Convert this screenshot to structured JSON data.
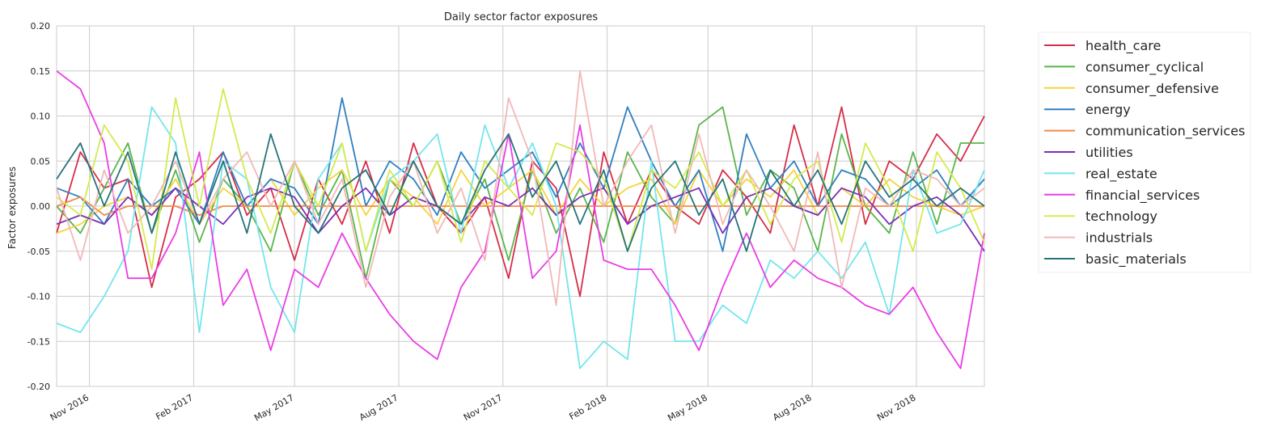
{
  "chart_data": {
    "type": "line",
    "title": "Daily sector factor exposures",
    "xlabel": "",
    "ylabel": "Factor exposures",
    "xlim": [
      "2016-10-03",
      "2018-12-31"
    ],
    "ylim": [
      -0.2,
      0.2
    ],
    "y_ticks": [
      "0.20",
      "0.15",
      "0.10",
      "0.05",
      "0.00",
      "-0.05",
      "-0.10",
      "-0.15",
      "-0.20"
    ],
    "x_ticks": [
      {
        "label": "Nov 2016",
        "date": "2016-11-01"
      },
      {
        "label": "Feb 2017",
        "date": "2017-02-01"
      },
      {
        "label": "May 2017",
        "date": "2017-05-01"
      },
      {
        "label": "Aug 2017",
        "date": "2017-08-01"
      },
      {
        "label": "Nov 2017",
        "date": "2017-11-01"
      },
      {
        "label": "Feb 2018",
        "date": "2018-02-01"
      },
      {
        "label": "May 2018",
        "date": "2018-05-01"
      },
      {
        "label": "Aug 2018",
        "date": "2018-08-01"
      },
      {
        "label": "Nov 2018",
        "date": "2018-11-01"
      }
    ],
    "grid": true,
    "legend_position": "outside-right-top",
    "x": [
      "2016-10-03",
      "2016-10-24",
      "2016-11-14",
      "2016-12-05",
      "2016-12-26",
      "2017-01-16",
      "2017-02-06",
      "2017-02-27",
      "2017-03-20",
      "2017-04-10",
      "2017-05-01",
      "2017-05-22",
      "2017-06-12",
      "2017-07-03",
      "2017-07-24",
      "2017-08-14",
      "2017-09-04",
      "2017-09-25",
      "2017-10-16",
      "2017-11-06",
      "2017-11-27",
      "2017-12-18",
      "2018-01-08",
      "2018-01-29",
      "2018-02-19",
      "2018-03-12",
      "2018-04-02",
      "2018-04-23",
      "2018-05-14",
      "2018-06-04",
      "2018-06-25",
      "2018-07-16",
      "2018-08-06",
      "2018-08-27",
      "2018-09-17",
      "2018-10-08",
      "2018-10-29",
      "2018-11-19",
      "2018-12-10",
      "2018-12-31"
    ],
    "series": [
      {
        "name": "health_care",
        "color": "#d62d49",
        "values": [
          -0.03,
          0.06,
          0.02,
          0.03,
          -0.09,
          0.01,
          0.03,
          0.06,
          -0.01,
          0.02,
          -0.06,
          0.03,
          -0.02,
          0.05,
          -0.03,
          0.07,
          0.0,
          -0.03,
          0.01,
          -0.08,
          0.05,
          0.02,
          -0.1,
          0.06,
          -0.02,
          0.04,
          0.0,
          -0.02,
          0.04,
          0.01,
          -0.03,
          0.09,
          0.0,
          0.11,
          -0.02,
          0.05,
          0.03,
          0.08,
          0.05,
          0.1
        ]
      },
      {
        "name": "consumer_cyclical",
        "color": "#5ab54b",
        "values": [
          0.0,
          -0.03,
          0.02,
          0.07,
          -0.03,
          0.04,
          -0.04,
          0.03,
          0.0,
          -0.05,
          0.05,
          -0.01,
          0.04,
          -0.08,
          0.03,
          0.0,
          0.05,
          -0.02,
          0.03,
          -0.06,
          0.04,
          -0.03,
          0.02,
          -0.04,
          0.06,
          0.01,
          -0.02,
          0.09,
          0.11,
          -0.01,
          0.04,
          0.02,
          -0.05,
          0.08,
          0.0,
          -0.03,
          0.06,
          -0.02,
          0.07,
          0.07
        ]
      },
      {
        "name": "consumer_defensive",
        "color": "#f6d33c",
        "values": [
          -0.03,
          -0.02,
          0.0,
          0.01,
          -0.01,
          0.03,
          -0.02,
          0.02,
          0.0,
          0.03,
          -0.01,
          0.02,
          0.04,
          -0.01,
          0.03,
          0.01,
          -0.02,
          0.04,
          0.0,
          0.02,
          0.04,
          -0.01,
          0.03,
          0.0,
          0.02,
          0.03,
          -0.02,
          0.04,
          0.0,
          0.03,
          0.01,
          0.04,
          -0.01,
          0.02,
          0.0,
          0.03,
          0.01,
          0.0,
          -0.01,
          0.0
        ]
      },
      {
        "name": "energy",
        "color": "#2f7fc1",
        "values": [
          0.02,
          0.01,
          -0.02,
          0.03,
          0.0,
          0.02,
          -0.02,
          0.06,
          0.0,
          0.03,
          0.02,
          -0.02,
          0.12,
          0.0,
          0.05,
          0.03,
          -0.01,
          0.06,
          0.02,
          0.04,
          0.06,
          0.01,
          0.07,
          0.02,
          0.11,
          0.05,
          0.0,
          0.04,
          -0.05,
          0.08,
          0.02,
          0.05,
          0.0,
          0.04,
          0.03,
          0.0,
          0.02,
          0.04,
          0.0,
          0.03
        ]
      },
      {
        "name": "communication_services",
        "color": "#f28a4b",
        "values": [
          0.0,
          0.01,
          -0.01,
          0.0,
          0.0,
          0.0,
          -0.01,
          0.0,
          0.0,
          0.0,
          0.0,
          0.0,
          0.0,
          0.0,
          0.0,
          0.0,
          0.0,
          0.0,
          0.0,
          0.0,
          0.0,
          0.0,
          0.0,
          0.0,
          0.0,
          0.0,
          0.0,
          0.0,
          0.0,
          0.0,
          0.0,
          0.0,
          0.0,
          0.0,
          0.0,
          0.0,
          0.0,
          0.0,
          0.0,
          0.0
        ]
      },
      {
        "name": "utilities",
        "color": "#7c2eb5",
        "values": [
          -0.02,
          -0.01,
          -0.02,
          0.01,
          -0.01,
          0.02,
          0.0,
          -0.02,
          0.01,
          0.02,
          0.01,
          -0.03,
          0.0,
          0.02,
          -0.01,
          0.01,
          0.0,
          -0.02,
          0.01,
          0.0,
          0.02,
          -0.01,
          0.01,
          0.02,
          -0.02,
          0.0,
          0.01,
          0.02,
          -0.03,
          0.01,
          0.02,
          0.0,
          -0.01,
          0.02,
          0.01,
          -0.02,
          0.0,
          0.01,
          -0.01,
          -0.05
        ]
      },
      {
        "name": "real_estate",
        "color": "#73e6ec",
        "values": [
          -0.13,
          -0.14,
          -0.1,
          -0.05,
          0.11,
          0.07,
          -0.14,
          0.05,
          0.03,
          -0.09,
          -0.14,
          0.03,
          0.07,
          -0.05,
          0.03,
          0.05,
          0.08,
          -0.03,
          0.09,
          0.02,
          0.07,
          0.0,
          -0.18,
          -0.15,
          -0.17,
          0.05,
          -0.15,
          -0.15,
          -0.11,
          -0.13,
          -0.06,
          -0.08,
          -0.05,
          -0.08,
          -0.04,
          -0.12,
          0.04,
          -0.03,
          -0.02,
          0.04
        ]
      },
      {
        "name": "financial_services",
        "color": "#e93ee5",
        "values": [
          0.15,
          0.13,
          0.07,
          -0.08,
          -0.08,
          -0.03,
          0.06,
          -0.11,
          -0.07,
          -0.16,
          -0.07,
          -0.09,
          -0.03,
          -0.08,
          -0.12,
          -0.15,
          -0.17,
          -0.09,
          -0.05,
          0.08,
          -0.08,
          -0.05,
          0.09,
          -0.06,
          -0.07,
          -0.07,
          -0.11,
          -0.16,
          -0.09,
          -0.03,
          -0.09,
          -0.06,
          -0.08,
          -0.09,
          -0.11,
          -0.12,
          -0.09,
          -0.14,
          -0.18,
          -0.03
        ]
      },
      {
        "name": "technology",
        "color": "#d5ea4d",
        "values": [
          0.01,
          -0.01,
          0.09,
          0.05,
          -0.07,
          0.12,
          0.0,
          0.13,
          0.03,
          -0.03,
          0.05,
          0.0,
          0.07,
          -0.05,
          0.04,
          0.0,
          0.05,
          -0.04,
          0.05,
          0.02,
          -0.01,
          0.07,
          0.06,
          0.03,
          -0.05,
          0.04,
          0.02,
          0.06,
          0.0,
          0.04,
          -0.02,
          0.03,
          0.05,
          -0.04,
          0.07,
          0.02,
          -0.05,
          0.06,
          0.02,
          -0.04
        ]
      },
      {
        "name": "industrials",
        "color": "#f0b9b7",
        "values": [
          0.02,
          -0.06,
          0.04,
          -0.03,
          0.0,
          0.05,
          -0.02,
          0.03,
          0.06,
          0.0,
          0.05,
          -0.02,
          0.03,
          -0.09,
          0.01,
          0.05,
          -0.03,
          0.02,
          -0.06,
          0.12,
          0.05,
          -0.11,
          0.15,
          0.0,
          0.05,
          0.09,
          -0.03,
          0.08,
          -0.02,
          0.04,
          0.0,
          -0.05,
          0.06,
          -0.09,
          0.02,
          0.0,
          0.04,
          0.03,
          0.0,
          0.02
        ]
      },
      {
        "name": "basic_materials",
        "color": "#267379",
        "values": [
          0.03,
          0.07,
          0.0,
          0.06,
          -0.03,
          0.06,
          -0.02,
          0.05,
          -0.03,
          0.08,
          0.0,
          -0.03,
          0.02,
          0.04,
          -0.01,
          0.05,
          0.0,
          -0.02,
          0.04,
          0.08,
          0.01,
          0.05,
          -0.02,
          0.04,
          -0.05,
          0.02,
          0.05,
          -0.01,
          0.03,
          -0.05,
          0.04,
          0.0,
          0.04,
          -0.02,
          0.05,
          0.01,
          0.03,
          0.0,
          0.02,
          0.0
        ]
      }
    ]
  }
}
